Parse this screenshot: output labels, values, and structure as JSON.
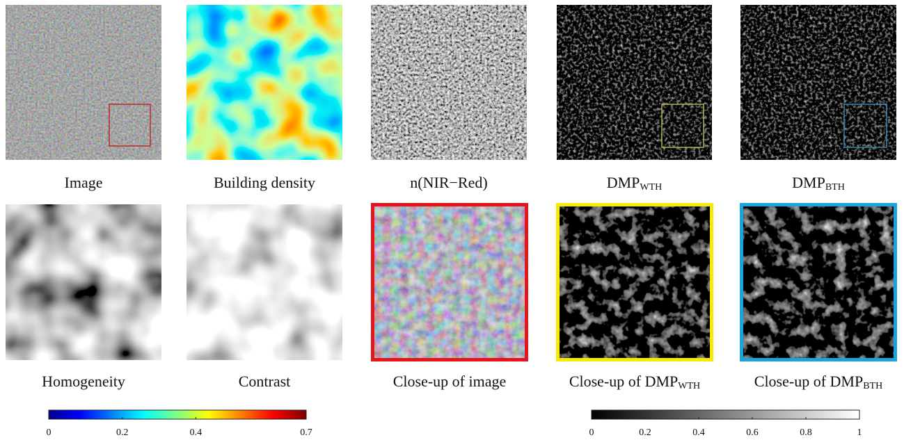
{
  "panels": [
    {
      "caption": "Image"
    },
    {
      "caption": "Building density"
    },
    {
      "caption": "n(NIR−Red)"
    },
    {
      "caption": "DMP",
      "subscript": "WTH"
    },
    {
      "caption": "DMP",
      "subscript": "BTH"
    },
    {
      "caption": "Homogeneity"
    },
    {
      "caption": "Contrast"
    },
    {
      "caption": "Close-up of image"
    },
    {
      "caption": "Close-up of DMP",
      "subscript": "WTH"
    },
    {
      "caption": "Close-up of DMP",
      "subscript": "BTH"
    }
  ],
  "colorbars": [
    {
      "colormap": "jet",
      "lim": [
        0,
        0.7
      ],
      "ticks": [
        0,
        0.2,
        0.4,
        0.7
      ]
    },
    {
      "colormap": "gray",
      "lim": [
        0,
        1
      ],
      "ticks": [
        0,
        0.2,
        0.4,
        0.6,
        0.8,
        1
      ]
    }
  ]
}
